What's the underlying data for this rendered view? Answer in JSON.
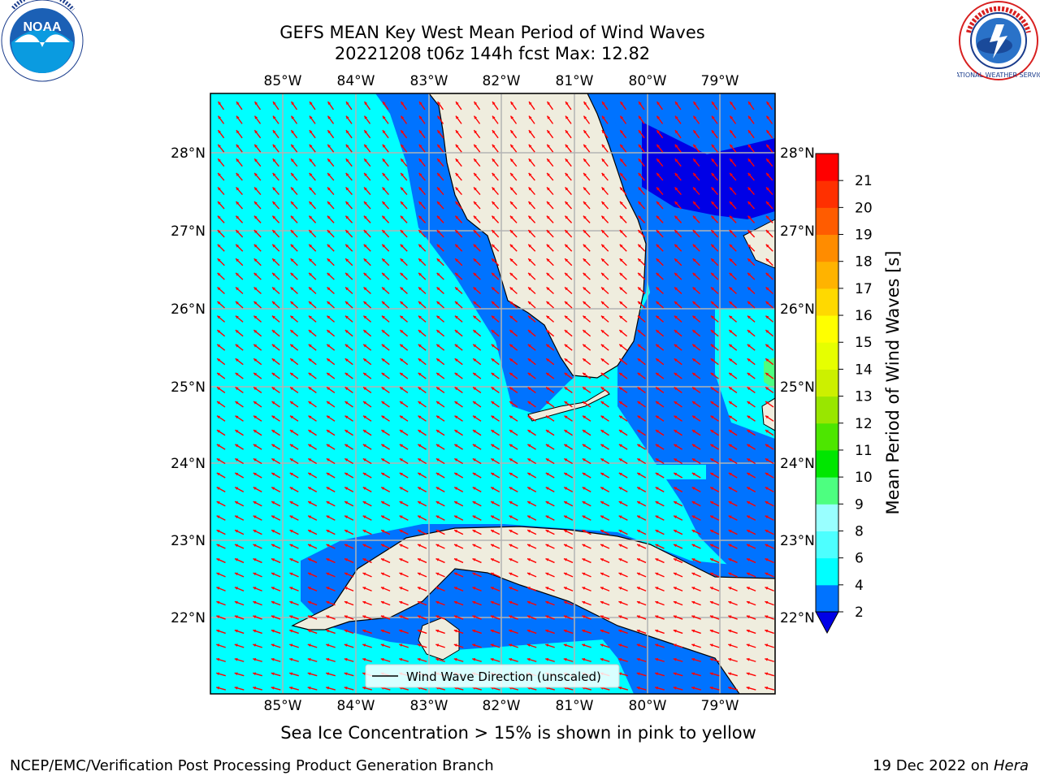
{
  "title": {
    "line1": "GEFS MEAN Key West Mean Period of Wind Waves",
    "line2": "20221208 t06z 144h fcst   Max: 12.82"
  },
  "map": {
    "lon_ticks": [
      "85°W",
      "84°W",
      "83°W",
      "82°W",
      "81°W",
      "80°W",
      "79°W"
    ],
    "lat_ticks": [
      "28°N",
      "27°N",
      "26°N",
      "25°N",
      "24°N",
      "23°N",
      "22°N"
    ],
    "legend_label": "Wind Wave Direction (unscaled)",
    "colors": {
      "light_cyan": "#00ffff",
      "medium_blue": "#0073ff",
      "deep_blue": "#0000e6",
      "land": "#efedde",
      "arrow": "#ff0000",
      "grid": "#b3b3b3"
    },
    "wave_direction": "southwest-to-northeast"
  },
  "colorbar": {
    "label": "Mean Period of Wind Waves [s]",
    "ticks": [
      "2",
      "4",
      "6",
      "8",
      "9",
      "10",
      "11",
      "12",
      "13",
      "14",
      "15",
      "16",
      "17",
      "18",
      "19",
      "20",
      "21"
    ],
    "colors": [
      "#0073ff",
      "#00ffff",
      "#4dffff",
      "#99ffff",
      "#4dff80",
      "#00e600",
      "#4de600",
      "#99e600",
      "#ccf000",
      "#e6ff00",
      "#ffff00",
      "#ffd900",
      "#ffb300",
      "#ff8c00",
      "#ff5c00",
      "#ff3000",
      "#ff0000"
    ],
    "extend_color": "#0000e6"
  },
  "note": "Sea Ice Concentration > 15% is shown in pink to yellow",
  "footer": {
    "left": "NCEP/EMC/Verification Post Processing Product Generation Branch",
    "right_prefix": "19 Dec 2022 on ",
    "right_host": "Hera"
  },
  "logos": {
    "noaa_text": "NOAA",
    "nws_text": "NATIONAL WEATHER SERVICE"
  }
}
